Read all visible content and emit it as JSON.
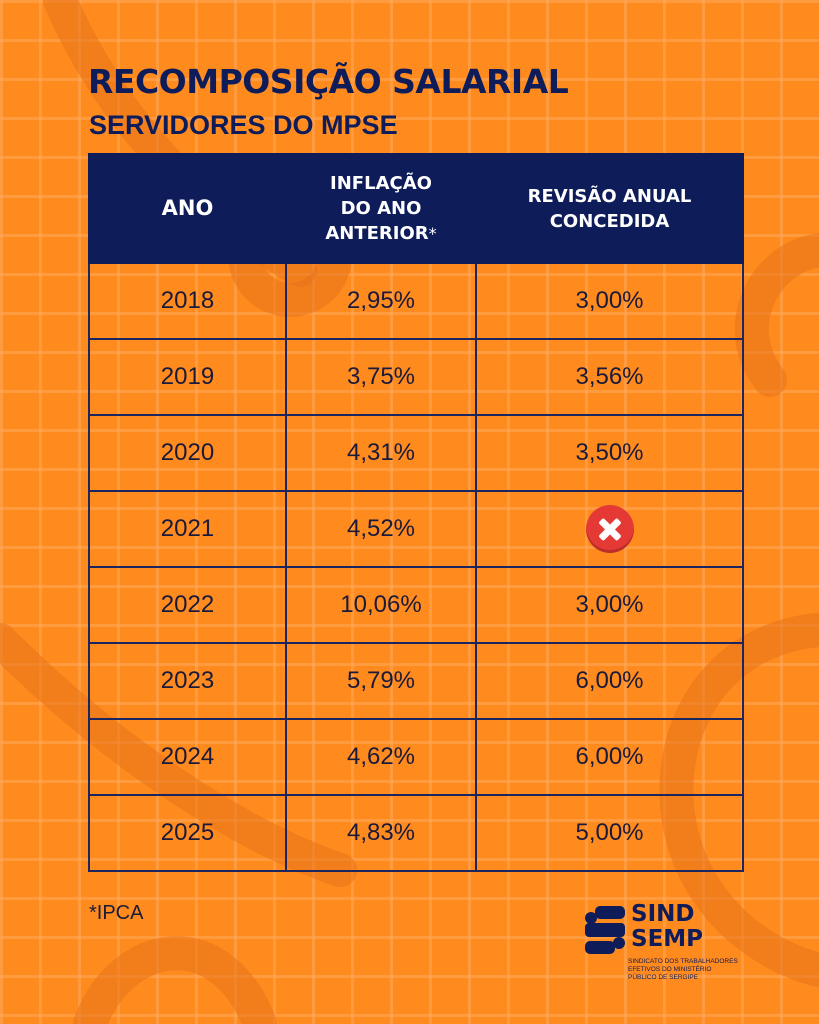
{
  "title": "RECOMPOSIÇÃO SALARIAL",
  "subtitle": "SERVIDORES DO MPSE",
  "table": {
    "headers": {
      "ano": "ANO",
      "inflacao_line1": "INFLAÇÃO",
      "inflacao_line2": "DO ANO",
      "inflacao_line3": "ANTERIOR",
      "inflacao_mark": "*",
      "revisao_line1": "REVISÃO ANUAL",
      "revisao_line2": "CONCEDIDA"
    },
    "rows": [
      {
        "ano": "2018",
        "inflacao": "2,95%",
        "revisao": "3,00%"
      },
      {
        "ano": "2019",
        "inflacao": "3,75%",
        "revisao": "3,56%"
      },
      {
        "ano": "2020",
        "inflacao": "4,31%",
        "revisao": "3,50%"
      },
      {
        "ano": "2021",
        "inflacao": "4,52%",
        "revisao": null,
        "revisao_icon": "red-x-circle-icon"
      },
      {
        "ano": "2022",
        "inflacao": "10,06%",
        "revisao": "3,00%"
      },
      {
        "ano": "2023",
        "inflacao": "5,79%",
        "revisao": "6,00%"
      },
      {
        "ano": "2024",
        "inflacao": "4,62%",
        "revisao": "6,00%"
      },
      {
        "ano": "2025",
        "inflacao": "4,83%",
        "revisao": "5,00%"
      }
    ]
  },
  "footnote": "*IPCA",
  "logo": {
    "line1": "SIND",
    "line2": "SEMP",
    "sub1": "SINDICATO DOS TRABALHADORES",
    "sub2": "EFETIVOS DO MINISTÉRIO",
    "sub3": "PÚBLICO DE SERGIPE"
  },
  "colors": {
    "background": "#FF8A1E",
    "navy": "#0E1C5A",
    "icon_red": "#E53935"
  }
}
